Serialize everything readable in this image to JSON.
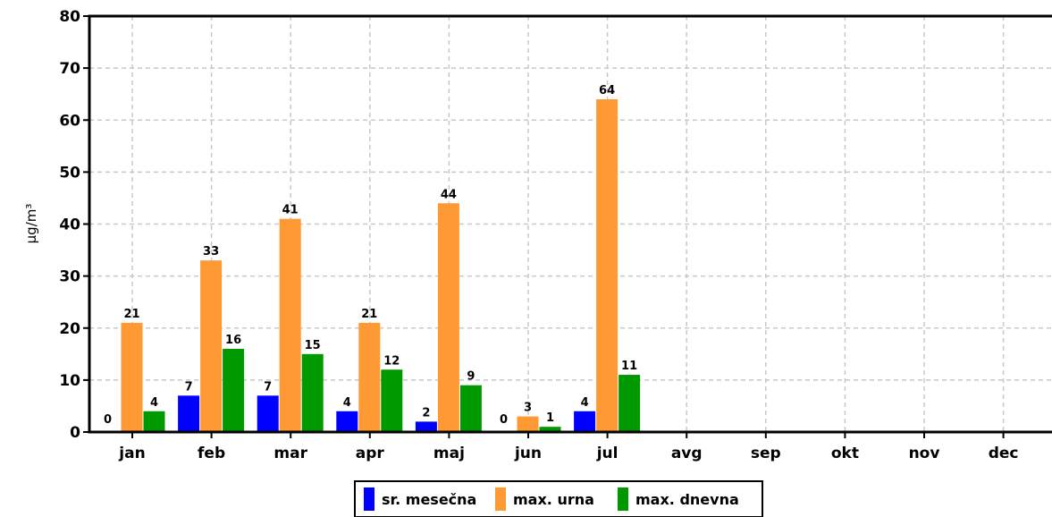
{
  "chart_data": {
    "type": "bar",
    "ylabel": "µg/m³",
    "ylim": [
      0,
      80
    ],
    "yticks": [
      "0",
      "10",
      "20",
      "30",
      "40",
      "50",
      "60",
      "70",
      "80"
    ],
    "categories": [
      "jan",
      "feb",
      "mar",
      "apr",
      "maj",
      "jun",
      "jul",
      "avg",
      "sep",
      "okt",
      "nov",
      "dec"
    ],
    "series": [
      {
        "name": "sr. mesečna",
        "color": "#0000ff",
        "values": [
          0,
          7,
          7,
          4,
          2,
          0,
          4,
          null,
          null,
          null,
          null,
          null
        ]
      },
      {
        "name": "max. urna",
        "color": "#ff9933",
        "values": [
          21,
          33,
          41,
          21,
          44,
          3,
          64,
          null,
          null,
          null,
          null,
          null
        ]
      },
      {
        "name": "max. dnevna",
        "color": "#009900",
        "values": [
          4,
          16,
          15,
          12,
          9,
          1,
          11,
          null,
          null,
          null,
          null,
          null
        ]
      }
    ],
    "grid": true,
    "legend_position": "bottom"
  }
}
